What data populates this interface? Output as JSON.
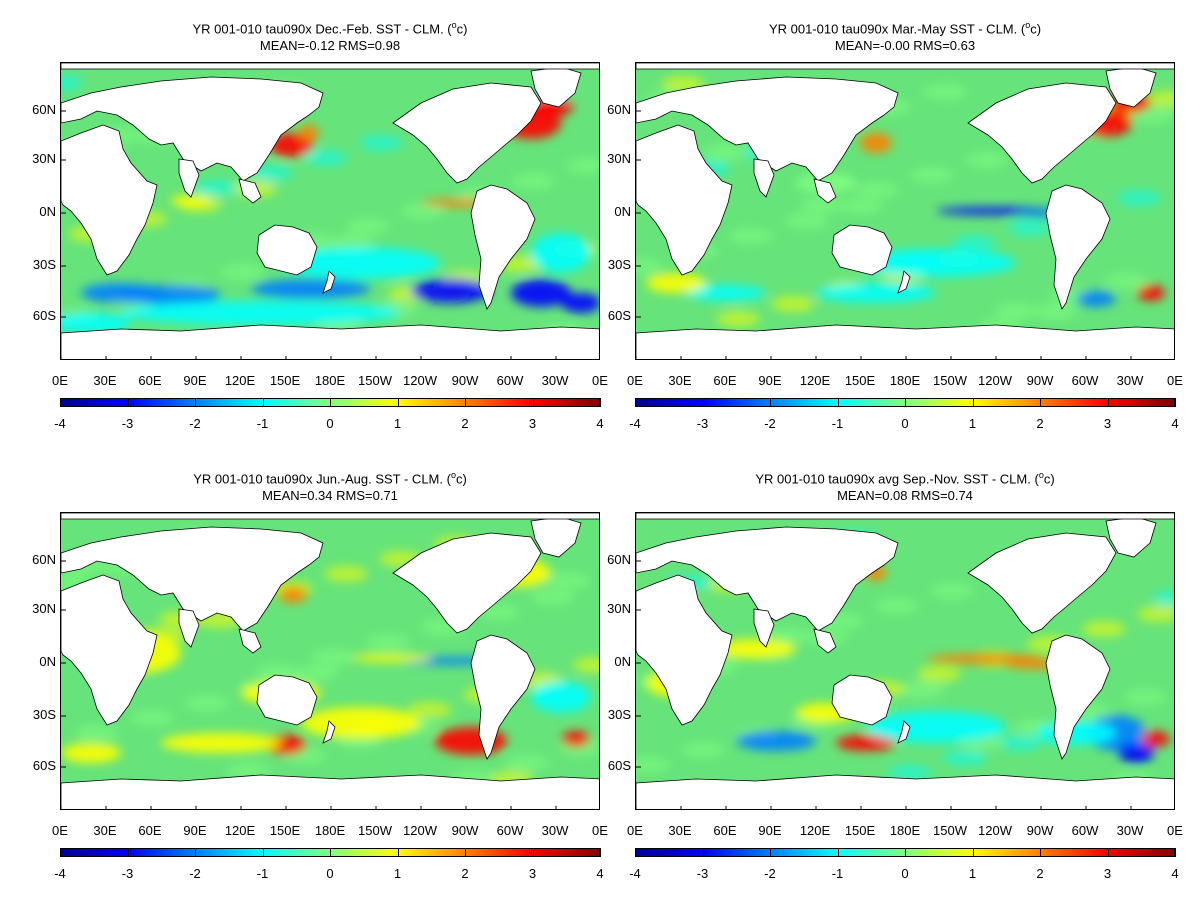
{
  "panels": [
    {
      "title_line1": "YR 001-010 tau090x  Dec.-Feb. SST - CLM. (",
      "title_unit_sup": "o",
      "title_unit_end": "c)",
      "stats": "MEAN=-0.12   RMS=0.98",
      "season": "DJF"
    },
    {
      "title_line1": "YR 001-010 tau090x Mar.-May SST - CLM. (",
      "title_unit_sup": "o",
      "title_unit_end": "c)",
      "stats": "MEAN=-0.00   RMS=0.63",
      "season": "MAM"
    },
    {
      "title_line1": "YR 001-010 tau090x Jun.-Aug. SST - CLM. (",
      "title_unit_sup": "o",
      "title_unit_end": "c)",
      "stats": "MEAN=0.34   RMS=0.71",
      "season": "JJA"
    },
    {
      "title_line1": "YR 001-010 tau090x avg Sep.-Nov. SST - CLM. (",
      "title_unit_sup": "o",
      "title_unit_end": "c)",
      "stats": "MEAN=0.08   RMS=0.74",
      "season": "SON"
    }
  ],
  "lat_labels": [
    "60N",
    "30N",
    "0N",
    "30S",
    "60S"
  ],
  "lon_labels": [
    "0E",
    "30E",
    "60E",
    "90E",
    "120E",
    "150E",
    "180E",
    "150W",
    "120W",
    "90W",
    "60W",
    "30W",
    "0E"
  ],
  "colorbar": {
    "ticks": [
      "-4",
      "-3",
      "-2",
      "-1",
      "0",
      "1",
      "2",
      "3",
      "4"
    ],
    "min": -4,
    "max": 4,
    "colors": [
      "#00008f",
      "#0000ff",
      "#0080ff",
      "#00ffff",
      "#80ff80",
      "#ffff00",
      "#ff8000",
      "#ff0000",
      "#800000"
    ]
  },
  "palette": {
    "ocean_base": "#66e37a",
    "land": "#ffffff"
  }
}
